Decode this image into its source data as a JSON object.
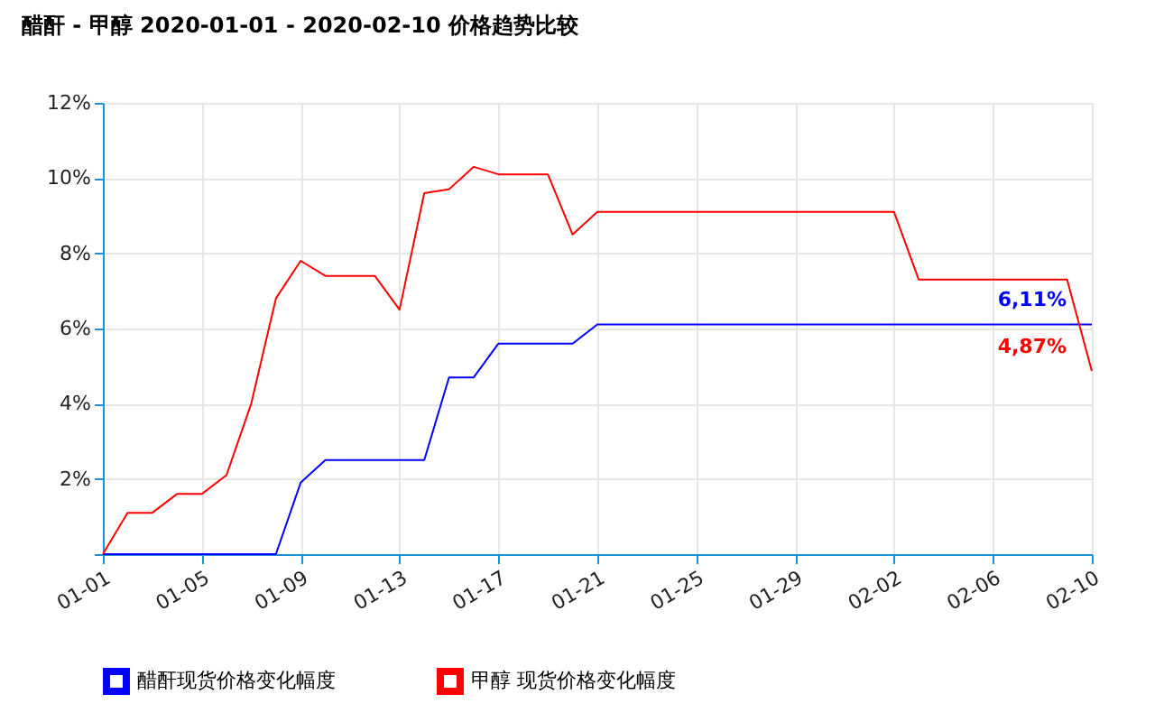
{
  "chart_data": {
    "type": "line",
    "title": "醋酐 - 甲醇 2020-01-01 - 2020-02-10 价格趋势比较",
    "x": [
      "2020-01-01",
      "2020-01-02",
      "2020-01-03",
      "2020-01-04",
      "2020-01-05",
      "2020-01-06",
      "2020-01-07",
      "2020-01-08",
      "2020-01-09",
      "2020-01-10",
      "2020-01-11",
      "2020-01-12",
      "2020-01-13",
      "2020-01-14",
      "2020-01-15",
      "2020-01-16",
      "2020-01-17",
      "2020-01-18",
      "2020-01-19",
      "2020-01-20",
      "2020-01-21",
      "2020-01-22",
      "2020-01-23",
      "2020-01-24",
      "2020-01-25",
      "2020-01-26",
      "2020-01-27",
      "2020-01-28",
      "2020-01-29",
      "2020-01-30",
      "2020-01-31",
      "2020-02-01",
      "2020-02-02",
      "2020-02-03",
      "2020-02-04",
      "2020-02-05",
      "2020-02-06",
      "2020-02-07",
      "2020-02-08",
      "2020-02-09",
      "2020-02-10"
    ],
    "series": [
      {
        "name": "醋酐现货价格变化幅度",
        "color": "#0000ff",
        "values": [
          0,
          0,
          0,
          0,
          0,
          0,
          0,
          0,
          1.9,
          2.5,
          2.5,
          2.5,
          2.5,
          2.5,
          4.7,
          4.7,
          5.6,
          5.6,
          5.6,
          5.6,
          6.11,
          6.11,
          6.11,
          6.11,
          6.11,
          6.11,
          6.11,
          6.11,
          6.11,
          6.11,
          6.11,
          6.11,
          6.11,
          6.11,
          6.11,
          6.11,
          6.11,
          6.11,
          6.11,
          6.11,
          6.11
        ],
        "value_labels": [
          null,
          null,
          null,
          null,
          null,
          null,
          null,
          null,
          null,
          null,
          null,
          null,
          null,
          null,
          null,
          null,
          null,
          null,
          null,
          null,
          null,
          null,
          null,
          null,
          null,
          null,
          null,
          null,
          null,
          null,
          null,
          null,
          null,
          null,
          null,
          null,
          null,
          null,
          null,
          null,
          "6,11%"
        ]
      },
      {
        "name": "甲醇 现货价格变化幅度",
        "color": "#ff0000",
        "values": [
          0,
          1.1,
          1.1,
          1.6,
          1.6,
          2.1,
          4.0,
          6.8,
          7.8,
          7.4,
          7.4,
          7.4,
          6.5,
          9.6,
          9.7,
          10.3,
          10.1,
          10.1,
          10.1,
          8.5,
          9.1,
          9.1,
          9.1,
          9.1,
          9.1,
          9.1,
          9.1,
          9.1,
          9.1,
          9.1,
          9.1,
          9.1,
          9.1,
          7.3,
          7.3,
          7.3,
          7.3,
          7.3,
          7.3,
          7.3,
          4.87
        ],
        "value_labels": [
          null,
          null,
          null,
          null,
          null,
          null,
          null,
          null,
          null,
          null,
          null,
          null,
          null,
          null,
          null,
          null,
          null,
          null,
          null,
          null,
          null,
          null,
          null,
          null,
          null,
          null,
          null,
          null,
          null,
          null,
          null,
          null,
          null,
          null,
          null,
          null,
          null,
          null,
          null,
          null,
          "4,87%"
        ]
      }
    ],
    "xlim": [
      "2020-01-01",
      "2020-02-10"
    ],
    "xticks": [
      {
        "value": "2020-01-01",
        "label": "01-01"
      },
      {
        "value": "2020-01-05",
        "label": "01-05"
      },
      {
        "value": "2020-01-09",
        "label": "01-09"
      },
      {
        "value": "2020-01-13",
        "label": "01-13"
      },
      {
        "value": "2020-01-17",
        "label": "01-17"
      },
      {
        "value": "2020-01-21",
        "label": "01-21"
      },
      {
        "value": "2020-01-25",
        "label": "01-25"
      },
      {
        "value": "2020-01-29",
        "label": "01-29"
      },
      {
        "value": "2020-02-02",
        "label": "02-02"
      },
      {
        "value": "2020-02-06",
        "label": "02-06"
      },
      {
        "value": "2020-02-10",
        "label": "02-10"
      }
    ],
    "ylim": [
      0,
      12
    ],
    "yticks": [
      {
        "value": 0,
        "label": null
      },
      {
        "value": 2,
        "label": "2%"
      },
      {
        "value": 4,
        "label": "4%"
      },
      {
        "value": 6,
        "label": "6%"
      },
      {
        "value": 8,
        "label": "8%"
      },
      {
        "value": 10,
        "label": "10%"
      },
      {
        "value": 12,
        "label": "12%"
      }
    ],
    "grid": true,
    "legend": "bottom left"
  }
}
